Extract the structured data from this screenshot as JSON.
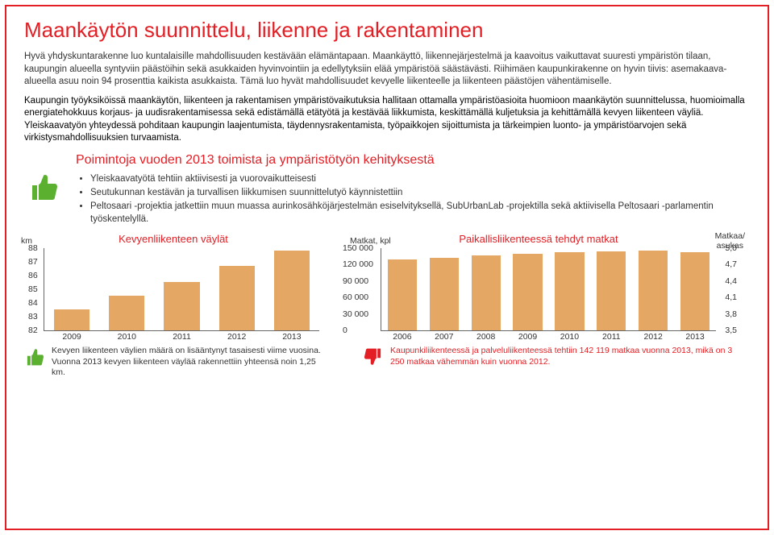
{
  "title": "Maankäytön suunnittelu, liikenne ja rakentaminen",
  "intro_p1": "Hyvä yhdyskuntarakenne luo kuntalaisille mahdollisuuden kestävään elämäntapaan. Maankäyttö, liikennejärjestelmä ja kaavoitus vaikuttavat suuresti ympäristön tilaan, kaupungin alueella syntyviin päästöihin sekä asukkaiden hyvinvointiin ja edellytyksiin elää ympäristöä säästävästi. Riihimäen kaupunkirakenne on hyvin tiivis: asemakaava-alueella asuu noin 94 prosenttia kaikista asukkaista. Tämä luo hyvät mahdollisuudet kevyelle liikenteelle ja liikenteen päästöjen vähentämiselle.",
  "intro_p2": "Kaupungin työyksiköissä maankäytön, liikenteen ja rakentamisen ympäristövaikutuksia hallitaan ottamalla ympäristöasioita huomioon maankäytön suunnittelussa, huomioimalla energiatehokkuus korjaus- ja uudisrakentamisessa sekä edistämällä etätyötä ja kestävää liikkumista, keskittämällä kuljetuksia ja kehittämällä kevyen liikenteen väyliä. Yleiskaavatyön yhteydessä pohditaan kaupungin laajentumista, täydennysrakentamista, työpaikkojen sijoittumista ja tärkeimpien luonto- ja ympäristöarvojen sekä virkistysmahdollisuuksien turvaamista.",
  "subheading": "Poimintoja vuoden 2013 toimista ja ympäristötyön kehityksestä",
  "bullets": [
    "Yleiskaavatyötä tehtiin aktiivisesti ja vuorovaikutteisesti",
    "Seutukunnan kestävän ja turvallisen liikkumisen suunnittelutyö käynnistettiin",
    "Peltosaari -projektia jatkettiin muun muassa aurinkosähköjärjestelmän esiselvityksellä, SubUrbanLab -projektilla sekä aktiivisella Peltosaari -parlamentin työskentelyllä."
  ],
  "chart1": {
    "title": "Kevyenliikenteen väylät",
    "y_unit": "km",
    "categories": [
      "2009",
      "2010",
      "2011",
      "2012",
      "2013"
    ],
    "values": [
      83.5,
      84.5,
      85.5,
      86.7,
      87.8
    ],
    "ymin": 82,
    "ymax": 88,
    "ytick_step": 1,
    "bar_color": "#e5a864",
    "note": "Kevyen liikenteen väylien määrä on lisääntynyt tasaisesti viime vuosina. Vuonna 2013 kevyen liikenteen väylää rakennettiin yhteensä noin 1,25 km."
  },
  "chart2": {
    "title": "Paikallisliikenteessä tehdyt matkat",
    "y_unit_left": "Matkat, kpl",
    "y_unit_right": "Matkaa/\nasukas",
    "categories": [
      "2006",
      "2007",
      "2008",
      "2009",
      "2010",
      "2011",
      "2012",
      "2013"
    ],
    "values": [
      130000,
      133000,
      137000,
      139000,
      142000,
      144000,
      145000,
      142000
    ],
    "ymin": 0,
    "ymax": 150000,
    "ytick_step": 30000,
    "right_ticks": [
      "5,0",
      "4,7",
      "4,4",
      "4,1",
      "3,8",
      "3,5"
    ],
    "bar_color": "#e5a864",
    "note": "Kaupunkiliikenteessä ja palveluliikenteessä tehtiin 142 119 matkaa vuonna 2013, mikä on 3 250 matkaa vähemmän kuin vuonna 2012."
  }
}
